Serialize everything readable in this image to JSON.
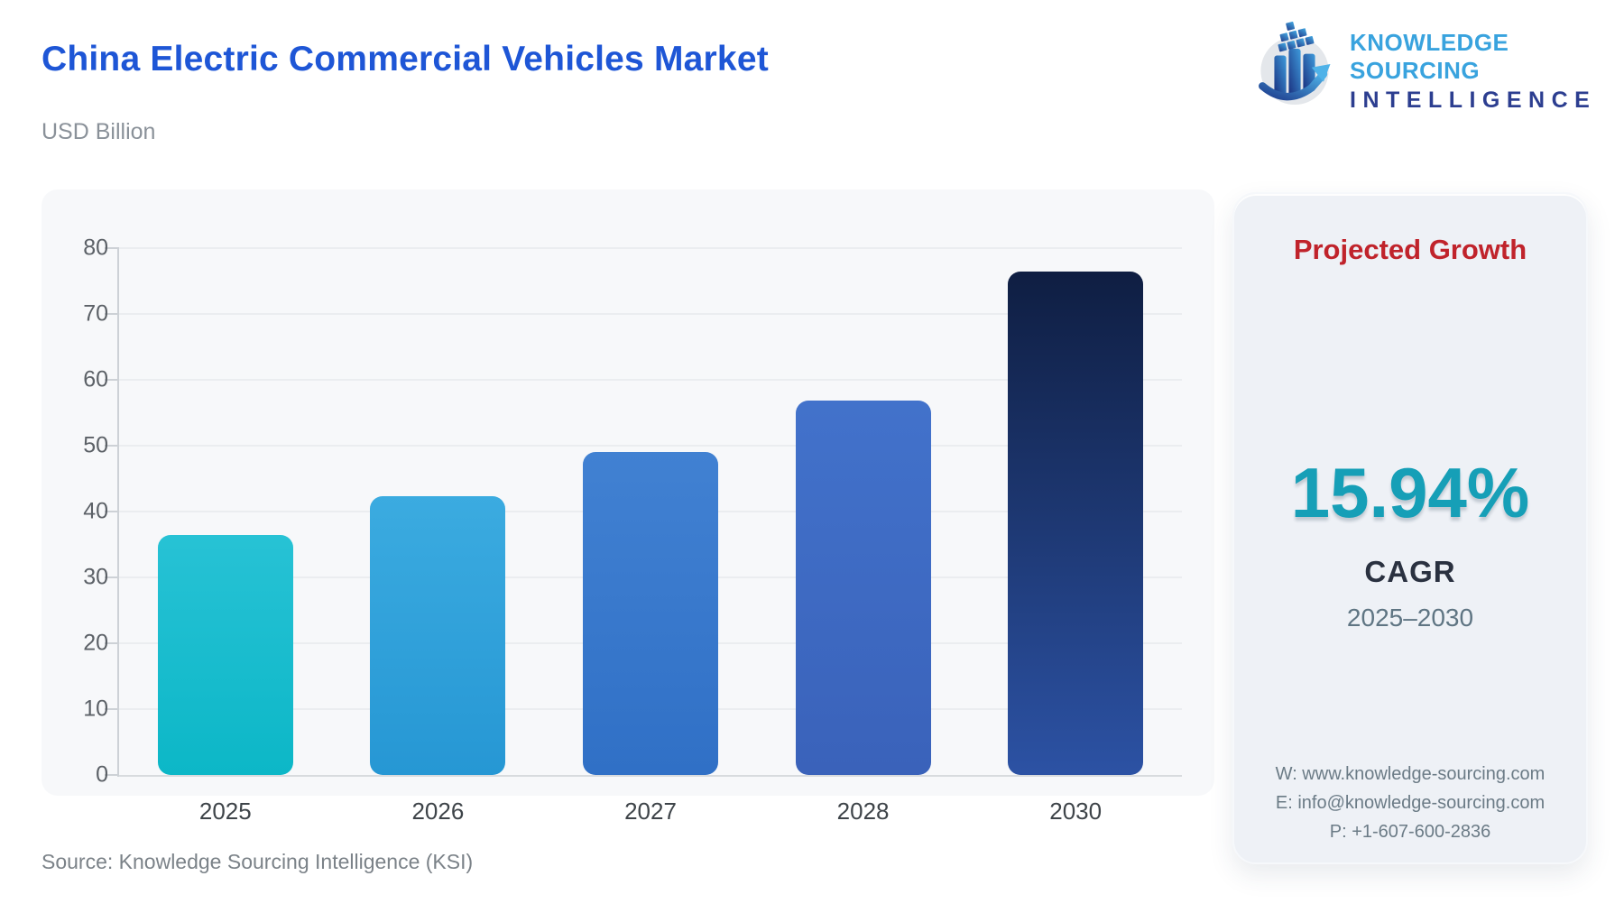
{
  "header": {
    "title": "China Electric Commercial Vehicles Market",
    "subtitle": "USD Billion",
    "logo": {
      "icon": "ksi-growth-logo-icon",
      "line1": "KNOWLEDGE SOURCING",
      "line2": "INTELLIGENCE",
      "line1_color": "#39A3DE",
      "line2_color": "#2C3E90"
    }
  },
  "chart_data": {
    "type": "bar",
    "title": "China Electric Commercial Vehicles Market",
    "xlabel": "",
    "ylabel": "USD Billion",
    "categories": [
      "2025",
      "2026",
      "2027",
      "2028",
      "2030"
    ],
    "values": [
      36.5,
      42.3,
      49.0,
      56.8,
      76.5
    ],
    "ylim": [
      0,
      80
    ],
    "yticks": [
      0,
      10,
      20,
      30,
      40,
      50,
      60,
      70,
      80
    ],
    "grid": true,
    "legend": "none",
    "bar_gradients": [
      [
        "#27C2D5",
        "#0CB7C7"
      ],
      [
        "#3BABE0",
        "#2697D4"
      ],
      [
        "#4181D2",
        "#3070C6"
      ],
      [
        "#4272CB",
        "#3A62BA"
      ],
      [
        "#0F1E42",
        "#2C52A4"
      ]
    ]
  },
  "side_panel": {
    "heading": "Projected Growth",
    "heading_color": "#C0232B",
    "cagr_value": "15.94%",
    "cagr_value_color": "#169FB7",
    "cagr_label": "CAGR",
    "period": "2025–2030",
    "contact": {
      "website": "W: www.knowledge-sourcing.com",
      "email": "E: info@knowledge-sourcing.com",
      "phone": "P: +1-607-600-2836"
    }
  },
  "footer": {
    "source": "Source: Knowledge Sourcing Intelligence (KSI)"
  }
}
